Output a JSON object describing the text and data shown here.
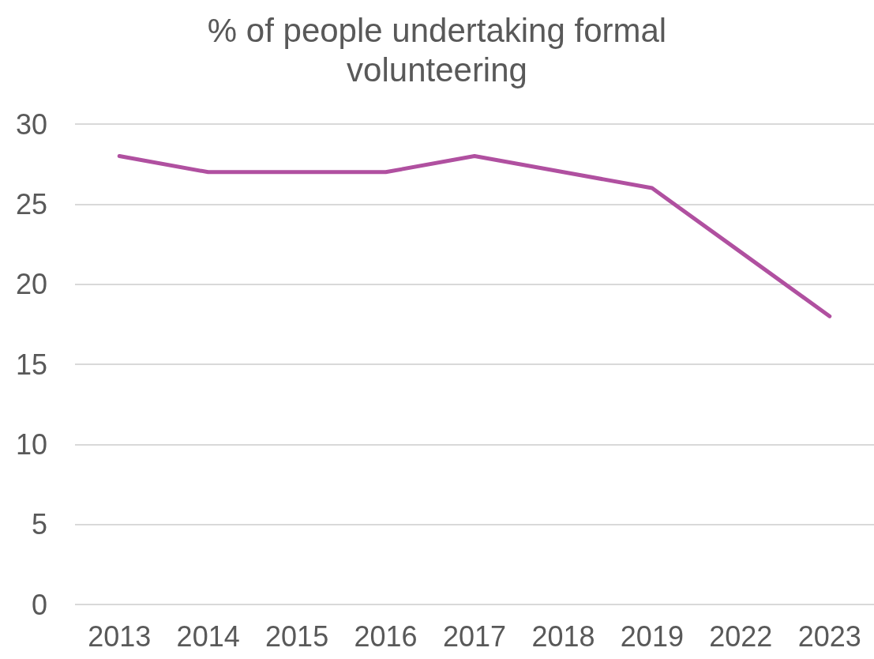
{
  "chart_data": {
    "type": "line",
    "title": "% of people undertaking formal\nvolunteering",
    "categories": [
      "2013",
      "2014",
      "2015",
      "2016",
      "2017",
      "2018",
      "2019",
      "2022",
      "2023"
    ],
    "series": [
      {
        "color": "#b050a0",
        "values": [
          28,
          27,
          27,
          27,
          28,
          27,
          26,
          22,
          18
        ]
      }
    ],
    "ylim": [
      0,
      30
    ],
    "yticks": [
      0,
      5,
      10,
      15,
      20,
      25,
      30
    ],
    "grid": "y",
    "marker": "none",
    "line_style": "solid"
  }
}
